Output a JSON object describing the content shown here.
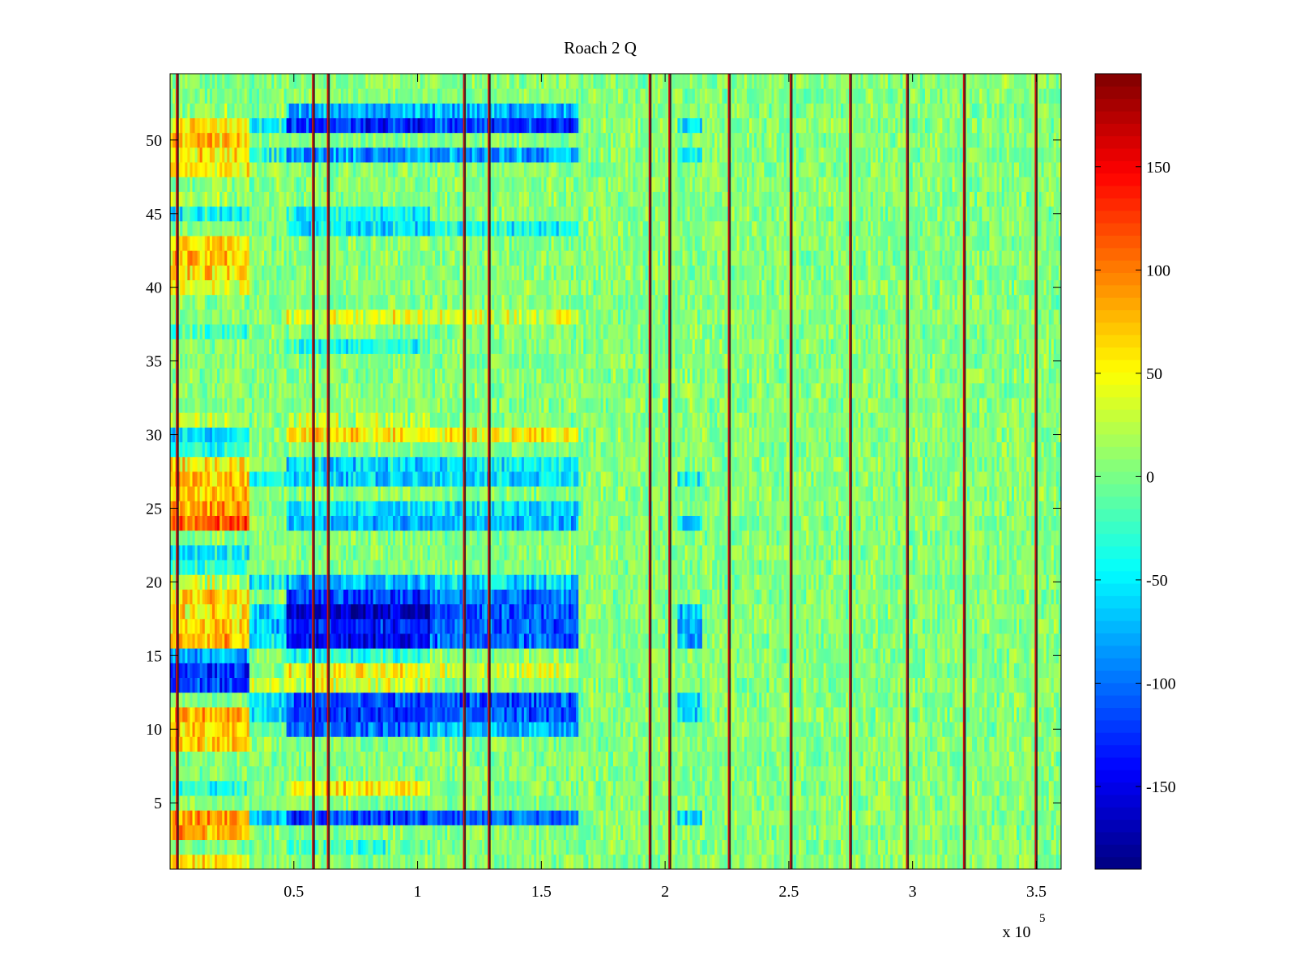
{
  "chart_data": {
    "type": "heatmap",
    "title": "Roach 2 Q",
    "xlabel": "",
    "ylabel": "",
    "x_multiplier_label": "x 10",
    "x_multiplier_exponent": "5",
    "xlim": [
      0.0,
      3.6
    ],
    "ylim": [
      0.5,
      54.5
    ],
    "x_ticks": [
      {
        "value": 0.5,
        "label": "0.5"
      },
      {
        "value": 1.0,
        "label": "1"
      },
      {
        "value": 1.5,
        "label": "1.5"
      },
      {
        "value": 2.0,
        "label": "2"
      },
      {
        "value": 2.5,
        "label": "2.5"
      },
      {
        "value": 3.0,
        "label": "3"
      },
      {
        "value": 3.5,
        "label": "3.5"
      }
    ],
    "y_ticks": [
      {
        "value": 5,
        "label": "5"
      },
      {
        "value": 10,
        "label": "10"
      },
      {
        "value": 15,
        "label": "15"
      },
      {
        "value": 20,
        "label": "20"
      },
      {
        "value": 25,
        "label": "25"
      },
      {
        "value": 30,
        "label": "30"
      },
      {
        "value": 35,
        "label": "35"
      },
      {
        "value": 40,
        "label": "40"
      },
      {
        "value": 45,
        "label": "45"
      },
      {
        "value": 50,
        "label": "50"
      }
    ],
    "colorbar": {
      "colormap": "jet",
      "range": [
        -190,
        195
      ],
      "ticks": [
        {
          "value": 150,
          "label": "150"
        },
        {
          "value": 100,
          "label": "100"
        },
        {
          "value": 50,
          "label": "50"
        },
        {
          "value": 0,
          "label": "0"
        },
        {
          "value": -50,
          "label": "-50"
        },
        {
          "value": -100,
          "label": "-100"
        },
        {
          "value": -150,
          "label": "-150"
        }
      ]
    },
    "rows": 54,
    "columns": 360,
    "baseline_value": 5,
    "noise_amplitude": 22,
    "vertical_lines": [
      0.03,
      0.58,
      0.64,
      1.19,
      1.29,
      1.94,
      2.02,
      2.26,
      2.51,
      2.75,
      2.98,
      3.21,
      3.5
    ],
    "segments": [
      {
        "x_start": 0.0,
        "x_end": 0.32,
        "rows": {
          "1": 55,
          "3": 80,
          "4": 85,
          "6": -35,
          "9": 65,
          "10": 70,
          "11": 80,
          "13": -120,
          "14": -125,
          "15": -75,
          "16": 75,
          "17": 65,
          "18": 55,
          "19": 60,
          "20": 25,
          "21": -30,
          "22": -50,
          "24": 115,
          "25": 90,
          "26": 70,
          "27": 75,
          "28": 55,
          "29": -35,
          "30": -60,
          "31": 30,
          "37": -25,
          "40": 40,
          "41": 60,
          "42": 70,
          "43": 60,
          "45": -45,
          "46": 20,
          "48": 55,
          "49": 60,
          "50": 70,
          "51": 60,
          "52": 10
        }
      },
      {
        "x_start": 0.32,
        "x_end": 0.47,
        "rows": {
          "4": -70,
          "11": -60,
          "12": -60,
          "13": 30,
          "16": -55,
          "17": -70,
          "18": -60,
          "20": -45,
          "27": -30,
          "49": -40,
          "51": -45
        }
      },
      {
        "x_start": 0.47,
        "x_end": 1.05,
        "rows": {
          "2": -20,
          "4": -120,
          "6": 55,
          "10": -100,
          "11": -125,
          "12": -115,
          "13": 35,
          "14": 45,
          "15": -30,
          "16": -145,
          "17": -130,
          "18": -165,
          "19": -120,
          "20": -75,
          "24": -70,
          "25": -55,
          "27": -60,
          "28": -55,
          "30": 60,
          "31": 25,
          "36": -35,
          "38": 40,
          "44": -50,
          "45": -45,
          "49": -85,
          "51": -130,
          "52": -75
        }
      },
      {
        "x_start": 1.05,
        "x_end": 1.65,
        "rows": {
          "4": -110,
          "10": -70,
          "11": -110,
          "12": -115,
          "14": 35,
          "16": -105,
          "17": -110,
          "18": -110,
          "19": -95,
          "20": -60,
          "24": -75,
          "25": -55,
          "27": -55,
          "28": -50,
          "30": 55,
          "38": 35,
          "44": -40,
          "49": -85,
          "51": -120,
          "52": -70
        }
      },
      {
        "x_start": 2.05,
        "x_end": 2.15,
        "rows": {
          "4": -70,
          "11": -60,
          "12": -55,
          "16": -75,
          "17": -80,
          "18": -70,
          "24": -55,
          "27": -45,
          "49": -45,
          "51": -55
        }
      }
    ]
  }
}
